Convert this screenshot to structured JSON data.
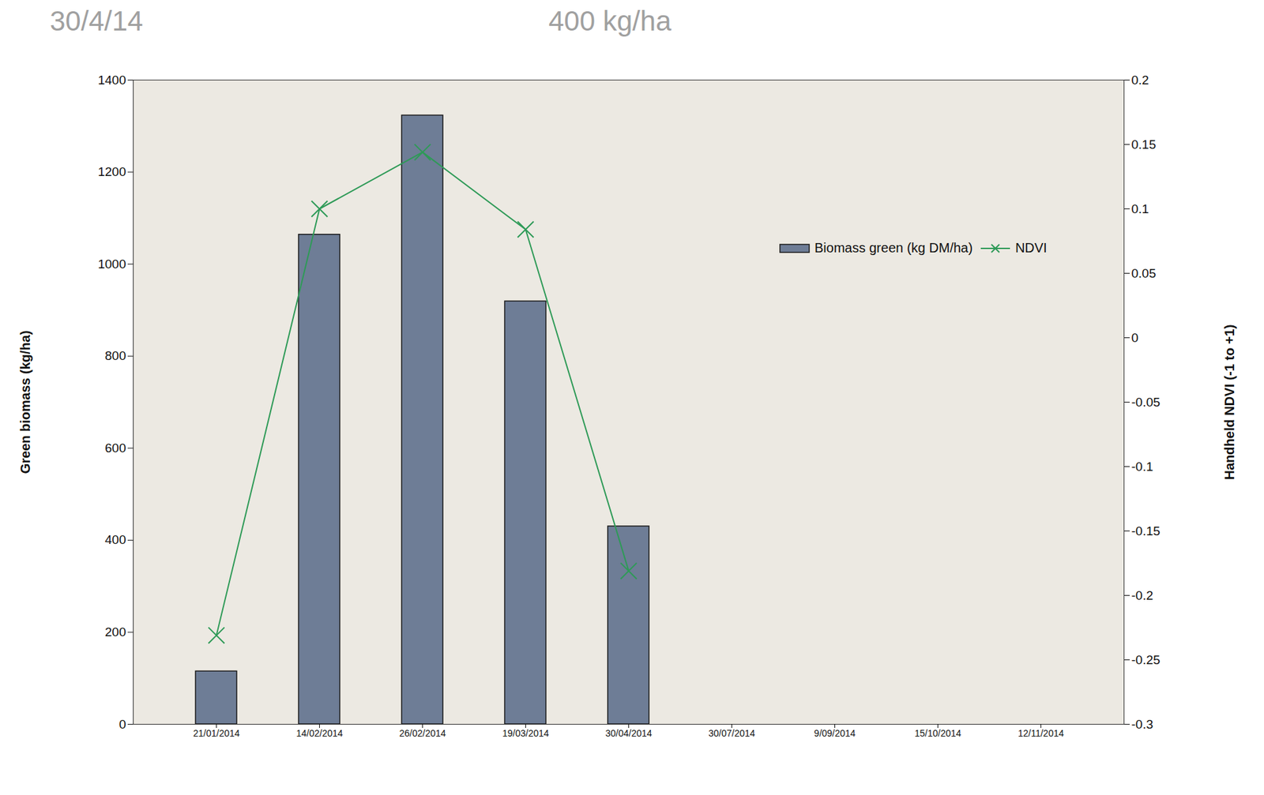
{
  "chart_data": {
    "type": "bar",
    "annotations": [
      "30/4/14",
      "400 kg/ha"
    ],
    "categories": [
      "21/01/2014",
      "14/02/2014",
      "26/02/2014",
      "19/03/2014",
      "30/04/2014",
      "30/07/2014",
      "9/09/2014",
      "15/10/2014",
      "12/11/2014"
    ],
    "series": [
      {
        "name": "Biomass green (kg DM/ha)",
        "type": "bar",
        "color": "#6e7d96",
        "values": [
          115,
          1064,
          1323,
          919,
          430,
          null,
          null,
          null,
          null
        ]
      },
      {
        "name": "NDVI",
        "type": "line",
        "axis": "y2",
        "color": "#2e9a57",
        "marker": "x",
        "values": [
          -0.231,
          0.1,
          0.144,
          0.084,
          -0.181,
          null,
          null,
          null,
          null
        ]
      }
    ],
    "ylabel": "Green biomass (kg/ha)",
    "y2label": "Handheld NDVI (-1 to +1)",
    "ylim": [
      0,
      1400
    ],
    "yticks": [
      0,
      200,
      400,
      600,
      800,
      1000,
      1200,
      1400
    ],
    "y2lim": [
      -0.3,
      0.2
    ],
    "y2ticks": [
      -0.3,
      -0.25,
      -0.2,
      -0.15,
      -0.1,
      -0.05,
      0,
      0.05,
      0.1,
      0.15,
      0.2
    ],
    "legend": "right",
    "grid": false
  }
}
